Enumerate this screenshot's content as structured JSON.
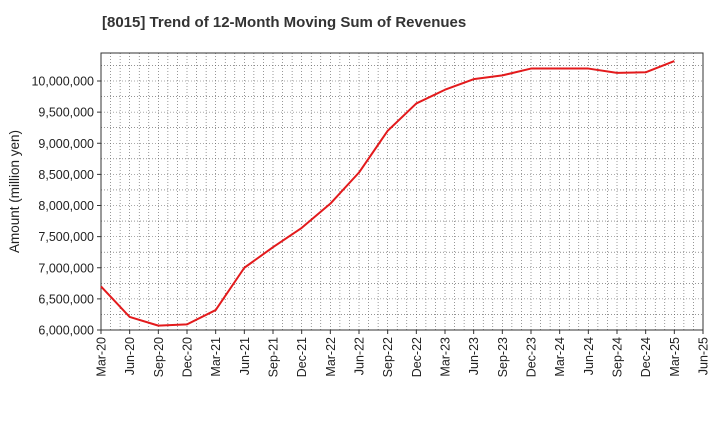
{
  "chart_data": {
    "type": "line",
    "title": "[8015]  Trend of 12-Month Moving Sum of Revenues",
    "xlabel": "",
    "ylabel": "Amount (million yen)",
    "ylim": [
      6000000,
      10450000
    ],
    "grid": true,
    "line_color": "#e31a1c",
    "yticks": [
      "6,000,000",
      "6,500,000",
      "7,000,000",
      "7,500,000",
      "8,000,000",
      "8,500,000",
      "9,000,000",
      "9,500,000",
      "10,000,000"
    ],
    "ytick_values": [
      6000000,
      6500000,
      7000000,
      7500000,
      8000000,
      8500000,
      9000000,
      9500000,
      10000000
    ],
    "xticks": [
      "Mar-20",
      "Jun-20",
      "Sep-20",
      "Dec-20",
      "Mar-21",
      "Jun-21",
      "Sep-21",
      "Dec-21",
      "Mar-22",
      "Jun-22",
      "Sep-22",
      "Dec-22",
      "Mar-23",
      "Jun-23",
      "Sep-23",
      "Dec-23",
      "Mar-24",
      "Jun-24",
      "Sep-24",
      "Dec-24",
      "Mar-25",
      "Jun-25"
    ],
    "x": [
      "Mar-20",
      "Jun-20",
      "Sep-20",
      "Dec-20",
      "Mar-21",
      "Jun-21",
      "Sep-21",
      "Dec-21",
      "Mar-22",
      "Jun-22",
      "Sep-22",
      "Dec-22",
      "Mar-23",
      "Jun-23",
      "Sep-23",
      "Dec-23",
      "Mar-24",
      "Jun-24",
      "Sep-24",
      "Dec-24",
      "Mar-25"
    ],
    "values": [
      6700000,
      6210000,
      6070000,
      6090000,
      6320000,
      7000000,
      7330000,
      7640000,
      8030000,
      8530000,
      9200000,
      9640000,
      9860000,
      10030000,
      10090000,
      10200000,
      10200000,
      10200000,
      10130000,
      10140000,
      10320000
    ]
  }
}
